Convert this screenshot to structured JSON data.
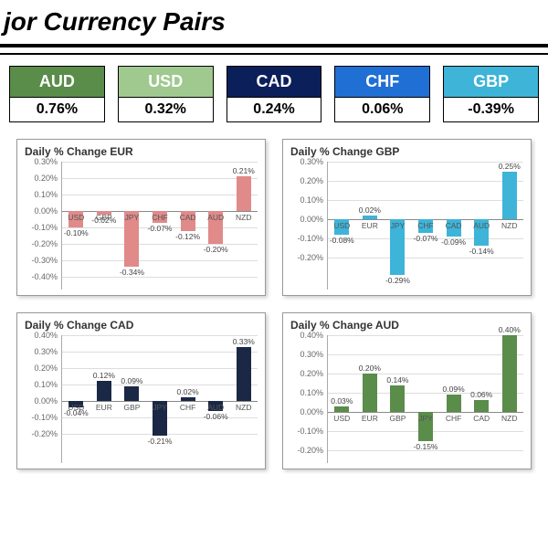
{
  "title": "jor Currency Pairs",
  "cards": [
    {
      "code": "AUD",
      "pct": "0.76%",
      "bg": "#5a8c4a"
    },
    {
      "code": "USD",
      "pct": "0.32%",
      "bg": "#9fc98f"
    },
    {
      "code": "CAD",
      "pct": "0.24%",
      "bg": "#0b1f5a"
    },
    {
      "code": "CHF",
      "pct": "0.06%",
      "bg": "#1f6fd4"
    },
    {
      "code": "GBP",
      "pct": "-0.39%",
      "bg": "#3db4d8"
    }
  ],
  "charts": [
    {
      "title": "Daily % Change EUR",
      "bar_color": "#e08a8a",
      "ylim": [
        -0.4,
        0.3
      ],
      "ytick_step": 0.1,
      "categories": [
        "USD",
        "GBP",
        "JPY",
        "CHF",
        "CAD",
        "AUD",
        "NZD"
      ],
      "values": [
        -0.1,
        -0.02,
        -0.34,
        -0.07,
        -0.12,
        -0.2,
        0.21
      ],
      "labels": [
        "-0.10%",
        "-0.02%",
        "-0.34%",
        "-0.07%",
        "-0.12%",
        "-0.20%",
        "0.21%"
      ]
    },
    {
      "title": "Daily % Change GBP",
      "bar_color": "#3db4d8",
      "ylim": [
        -0.3,
        0.3
      ],
      "ytick_step": 0.1,
      "categories": [
        "USD",
        "EUR",
        "JPY",
        "CHF",
        "CAD",
        "AUD",
        "NZD"
      ],
      "values": [
        -0.08,
        0.02,
        -0.29,
        -0.07,
        -0.09,
        -0.14,
        0.25
      ],
      "labels": [
        "-0.08%",
        "0.02%",
        "-0.29%",
        "-0.07%",
        "-0.09%",
        "-0.14%",
        "0.25%"
      ]
    },
    {
      "title": "Daily % Change CAD",
      "bar_color": "#1a2845",
      "ylim": [
        -0.3,
        0.4
      ],
      "ytick_step": 0.1,
      "categories": [
        "USD",
        "EUR",
        "GBP",
        "JPY",
        "CHF",
        "AUD",
        "NZD"
      ],
      "values": [
        -0.04,
        0.12,
        0.09,
        -0.21,
        0.02,
        -0.06,
        0.33
      ],
      "labels": [
        "-0.04%",
        "0.12%",
        "0.09%",
        "-0.21%",
        "0.02%",
        "-0.06%",
        "0.33%"
      ]
    },
    {
      "title": "Daily % Change AUD",
      "bar_color": "#5a8c4a",
      "ylim": [
        -0.2,
        0.4
      ],
      "ytick_step": 0.1,
      "categories": [
        "USD",
        "EUR",
        "GBP",
        "JPY",
        "CHF",
        "CAD",
        "NZD"
      ],
      "values": [
        0.03,
        0.2,
        0.14,
        -0.15,
        0.09,
        0.06,
        0.4
      ],
      "labels": [
        "0.03%",
        "0.20%",
        "0.14%",
        "-0.15%",
        "0.09%",
        "0.06%",
        "0.40%"
      ]
    }
  ],
  "colors": {
    "grid": "#dddddd",
    "axis": "#888888",
    "background": "#ffffff"
  }
}
